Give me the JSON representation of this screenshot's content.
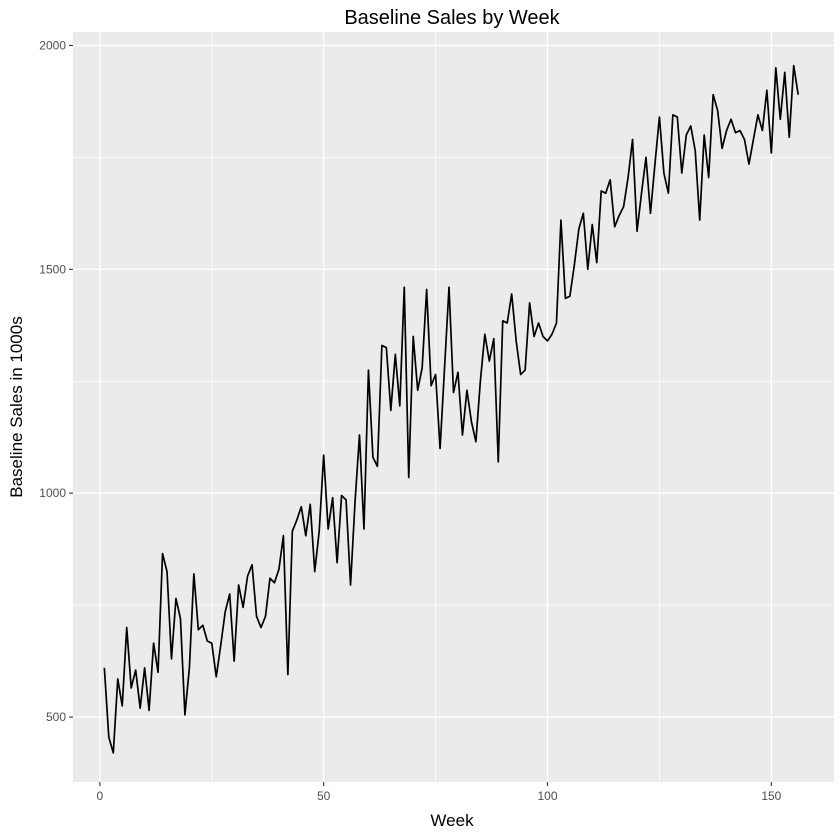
{
  "chart_data": {
    "type": "line",
    "title": "Baseline Sales by Week",
    "xlabel": "Week",
    "ylabel": "Baseline Sales in 1000s",
    "xlim": [
      -6,
      164
    ],
    "ylim": [
      355,
      2030
    ],
    "x_ticks": [
      0,
      50,
      100,
      150
    ],
    "y_ticks": [
      500,
      1000,
      1500,
      2000
    ],
    "grid": true,
    "legend": "none",
    "colors": {
      "panel": "#ebebeb",
      "grid": "#ffffff",
      "line": "#000000",
      "tick": "#4d4d4d"
    },
    "series": [
      {
        "x": [
          1,
          2,
          3,
          4,
          5,
          6,
          7,
          8,
          9,
          10,
          11,
          12,
          13,
          14,
          15,
          16,
          17,
          18,
          19,
          20,
          21,
          22,
          23,
          24,
          25,
          26,
          27,
          28,
          29,
          30,
          31,
          32,
          33,
          34,
          35,
          36,
          37,
          38,
          39,
          40,
          41,
          42,
          43,
          44,
          45,
          46,
          47,
          48,
          49,
          50,
          51,
          52,
          53,
          54,
          55,
          56,
          57,
          58,
          59,
          60,
          61,
          62,
          63,
          64,
          65,
          66,
          67,
          68,
          69,
          70,
          71,
          72,
          73,
          74,
          75,
          76,
          77,
          78,
          79,
          80,
          81,
          82,
          83,
          84,
          85,
          86,
          87,
          88,
          89,
          90,
          91,
          92,
          93,
          94,
          95,
          96,
          97,
          98,
          99,
          100,
          101,
          102,
          103,
          104,
          105,
          106,
          107,
          108,
          109,
          110,
          111,
          112,
          113,
          114,
          115,
          116,
          117,
          118,
          119,
          120,
          121,
          122,
          123,
          124,
          125,
          126,
          127,
          128,
          129,
          130,
          131,
          132,
          133,
          134,
          135,
          136,
          137,
          138,
          139,
          140,
          141,
          142,
          143,
          144,
          145,
          146,
          147,
          148,
          149,
          150,
          151,
          152,
          153,
          154,
          155,
          156
        ],
        "values": [
          610,
          455,
          420,
          585,
          525,
          700,
          565,
          605,
          520,
          610,
          515,
          665,
          600,
          865,
          825,
          630,
          765,
          720,
          505,
          610,
          820,
          695,
          705,
          670,
          665,
          590,
          660,
          735,
          775,
          625,
          795,
          745,
          815,
          840,
          725,
          700,
          725,
          810,
          800,
          830,
          905,
          595,
          915,
          940,
          970,
          905,
          975,
          825,
          915,
          1085,
          920,
          990,
          845,
          995,
          985,
          795,
          980,
          1130,
          920,
          1275,
          1080,
          1060,
          1330,
          1325,
          1185,
          1310,
          1195,
          1460,
          1035,
          1350,
          1230,
          1280,
          1455,
          1240,
          1265,
          1100,
          1280,
          1460,
          1225,
          1270,
          1130,
          1230,
          1160,
          1115,
          1250,
          1355,
          1295,
          1345,
          1070,
          1385,
          1380,
          1445,
          1340,
          1265,
          1275,
          1425,
          1350,
          1380,
          1350,
          1340,
          1355,
          1380,
          1610,
          1435,
          1440,
          1510,
          1590,
          1625,
          1500,
          1600,
          1515,
          1675,
          1670,
          1700,
          1595,
          1620,
          1640,
          1705,
          1790,
          1585,
          1670,
          1750,
          1625,
          1735,
          1840,
          1715,
          1670,
          1845,
          1840,
          1715,
          1800,
          1820,
          1765,
          1610,
          1800,
          1705,
          1890,
          1855,
          1770,
          1810,
          1835,
          1805,
          1810,
          1790,
          1735,
          1790,
          1845,
          1810,
          1900,
          1760,
          1950,
          1835,
          1940,
          1795,
          1955,
          1890
        ]
      }
    ]
  }
}
